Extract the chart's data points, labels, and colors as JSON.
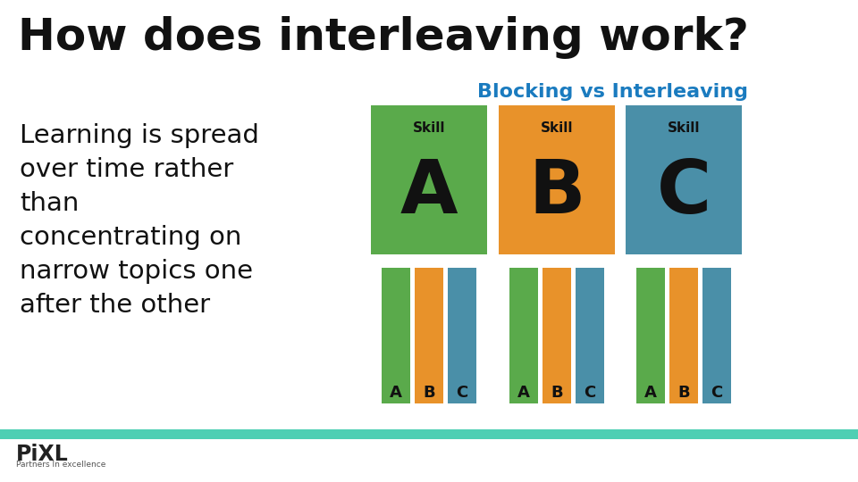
{
  "title": "How does interleaving work?",
  "subtitle": "Blocking vs Interleaving",
  "body_text": "Learning is spread\nover time rather\nthan\nconcentrating on\nnarrow topics one\nafter the other",
  "color_green": "#5aaa4b",
  "color_orange": "#e8922a",
  "color_teal": "#4a8fa8",
  "subtitle_color": "#1a7bbf",
  "bg_color": "#ffffff",
  "footer_bar_color": "#4ecfb3",
  "pixl_text_color": "#222222",
  "skill_labels": [
    "A",
    "B",
    "C"
  ],
  "skill_colors": [
    "#5aaa4b",
    "#e8922a",
    "#4a8fa8"
  ],
  "title_fontsize": 36,
  "subtitle_fontsize": 16,
  "body_fontsize": 21
}
